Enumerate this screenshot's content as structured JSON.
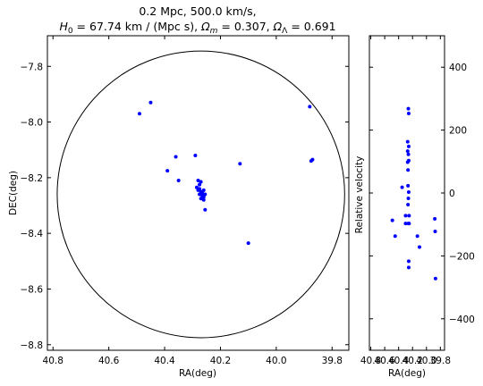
{
  "chart_data": [
    {
      "type": "scatter",
      "panel": "sky",
      "title_line1": "0.2 Mpc, 500.0 km/s,",
      "title_h0": "H",
      "title_h0_sub": "0",
      "title_h0_value": " = 67.74 km / (Mpc s), ",
      "title_om": "Ω",
      "title_om_sub": "m",
      "title_om_value": " = 0.307, ",
      "title_ol": "Ω",
      "title_ol_sub": "Λ",
      "title_ol_value": " = 0.691",
      "xlabel": "RA(deg)",
      "ylabel": "DEC(deg)",
      "xlim": [
        40.82,
        39.74
      ],
      "ylim": [
        -8.82,
        -7.69
      ],
      "x_ticks": [
        40.8,
        40.6,
        40.4,
        40.2,
        40.0,
        39.8
      ],
      "x_tick_labels": [
        "40.8",
        "40.6",
        "40.4",
        "40.2",
        "40.0",
        "39.8"
      ],
      "y_ticks": [
        -7.8,
        -8.0,
        -8.2,
        -8.4,
        -8.6,
        -8.8
      ],
      "y_tick_labels": [
        "−7.8",
        "−8.0",
        "−8.2",
        "−8.4",
        "−8.6",
        "−8.8"
      ],
      "circle": {
        "center": [
          40.27,
          -8.26
        ],
        "radius_deg": 0.515,
        "color": "#000000"
      },
      "point_color": "#0000ff",
      "points": [
        [
          40.49,
          -7.97
        ],
        [
          40.45,
          -7.93
        ],
        [
          39.88,
          -7.945
        ],
        [
          39.875,
          -8.14
        ],
        [
          39.87,
          -8.135
        ],
        [
          40.13,
          -8.15
        ],
        [
          40.39,
          -8.175
        ],
        [
          40.36,
          -8.125
        ],
        [
          40.35,
          -8.21
        ],
        [
          40.29,
          -8.12
        ],
        [
          40.1,
          -8.435
        ],
        [
          40.255,
          -8.315
        ],
        [
          40.28,
          -8.21
        ],
        [
          40.275,
          -8.225
        ],
        [
          40.27,
          -8.215
        ],
        [
          40.285,
          -8.235
        ],
        [
          40.28,
          -8.245
        ],
        [
          40.275,
          -8.24
        ],
        [
          40.27,
          -8.25
        ],
        [
          40.265,
          -8.255
        ],
        [
          40.26,
          -8.245
        ],
        [
          40.275,
          -8.26
        ],
        [
          40.265,
          -8.265
        ],
        [
          40.26,
          -8.27
        ],
        [
          40.27,
          -8.275
        ],
        [
          40.26,
          -8.28
        ],
        [
          40.255,
          -8.26
        ]
      ]
    },
    {
      "type": "scatter",
      "panel": "velocity",
      "xlabel": "RA(deg)",
      "ylabel": "Relative velocity",
      "xlim": [
        40.82,
        39.74
      ],
      "ylim": [
        -500,
        500
      ],
      "x_ticks": [
        40.8,
        40.6,
        40.4,
        40.2,
        40.0,
        39.8
      ],
      "x_tick_labels": [
        "40.8",
        "40.6",
        "40.4",
        "40.2",
        "40.0",
        "39.8"
      ],
      "y_ticks": [
        400,
        200,
        0,
        -200,
        -400
      ],
      "y_tick_labels": [
        "400",
        "200",
        "0",
        "−200",
        "−400"
      ],
      "point_color": "#0000ff",
      "points": [
        [
          40.26,
          268
        ],
        [
          40.255,
          253
        ],
        [
          40.27,
          163
        ],
        [
          40.255,
          148
        ],
        [
          40.27,
          133
        ],
        [
          40.26,
          123
        ],
        [
          40.255,
          103
        ],
        [
          40.27,
          98
        ],
        [
          40.265,
          73
        ],
        [
          40.265,
          23
        ],
        [
          40.255,
          3
        ],
        [
          40.26,
          -17
        ],
        [
          40.265,
          -37
        ],
        [
          40.3,
          -72
        ],
        [
          40.25,
          -72
        ],
        [
          40.26,
          -97
        ],
        [
          40.3,
          -97
        ],
        [
          40.25,
          -97
        ],
        [
          40.35,
          18
        ],
        [
          40.49,
          -87
        ],
        [
          40.45,
          -137
        ],
        [
          40.13,
          -137
        ],
        [
          40.1,
          -172
        ],
        [
          39.88,
          -82
        ],
        [
          39.875,
          -122
        ],
        [
          39.87,
          -272
        ],
        [
          40.255,
          -217
        ],
        [
          40.255,
          -237
        ]
      ]
    }
  ]
}
